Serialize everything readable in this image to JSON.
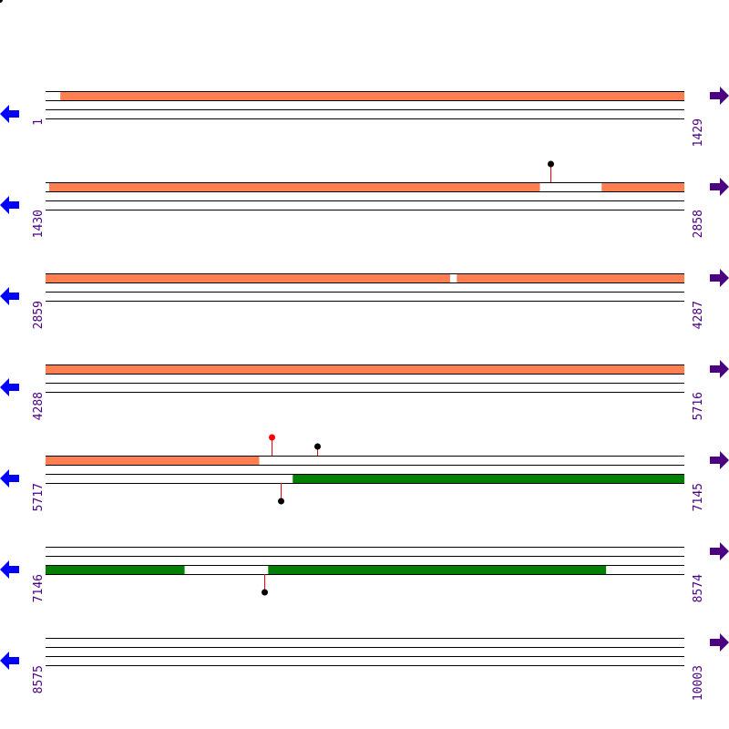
{
  "colors": {
    "forward_feature": "#ff7f50",
    "reverse_feature": "#008000",
    "line": "#000000",
    "label": "#4b0082",
    "left_arrow": "#0000ff",
    "right_arrow": "#4b0082",
    "marker_red": "#ff0000",
    "marker_black": "#000000",
    "stem": "#ff0000"
  },
  "icons": {
    "left": "arrow-left-icon",
    "right": "arrow-right-icon"
  },
  "rows": [
    {
      "start": "1",
      "end": "1429",
      "forward": [
        [
          34,
          1429
        ]
      ],
      "reverse": [],
      "markers": []
    },
    {
      "start": "1430",
      "end": "2858",
      "forward": [
        [
          1438,
          2535
        ],
        [
          2674,
          2858
        ]
      ],
      "reverse": [],
      "markers": [
        {
          "pos": 2560,
          "strand": "up",
          "height": 20,
          "color": "black"
        }
      ]
    },
    {
      "start": "2859",
      "end": "4287",
      "forward": [
        [
          2859,
          3763
        ],
        [
          3779,
          4287
        ]
      ],
      "reverse": [],
      "markers": []
    },
    {
      "start": "4288",
      "end": "5716",
      "forward": [
        [
          4288,
          5716
        ]
      ],
      "reverse": [],
      "markers": []
    },
    {
      "start": "5717",
      "end": "7145",
      "forward": [
        [
          5717,
          6194
        ]
      ],
      "reverse": [
        [
          6270,
          7145
        ]
      ],
      "markers": [
        {
          "pos": 6223,
          "strand": "up",
          "height": 20,
          "color": "red"
        },
        {
          "pos": 6325,
          "strand": "up",
          "height": 10,
          "color": "black"
        },
        {
          "pos": 6243,
          "strand": "down",
          "height": 20,
          "color": "black"
        }
      ]
    },
    {
      "start": "7146",
      "end": "8574",
      "forward": [],
      "reverse": [
        [
          7146,
          7456
        ],
        [
          7644,
          8399
        ]
      ],
      "markers": [
        {
          "pos": 7636,
          "strand": "down",
          "height": 20,
          "color": "black"
        }
      ]
    },
    {
      "start": "8575",
      "end": "10003",
      "forward": [],
      "reverse": [],
      "markers": []
    }
  ]
}
